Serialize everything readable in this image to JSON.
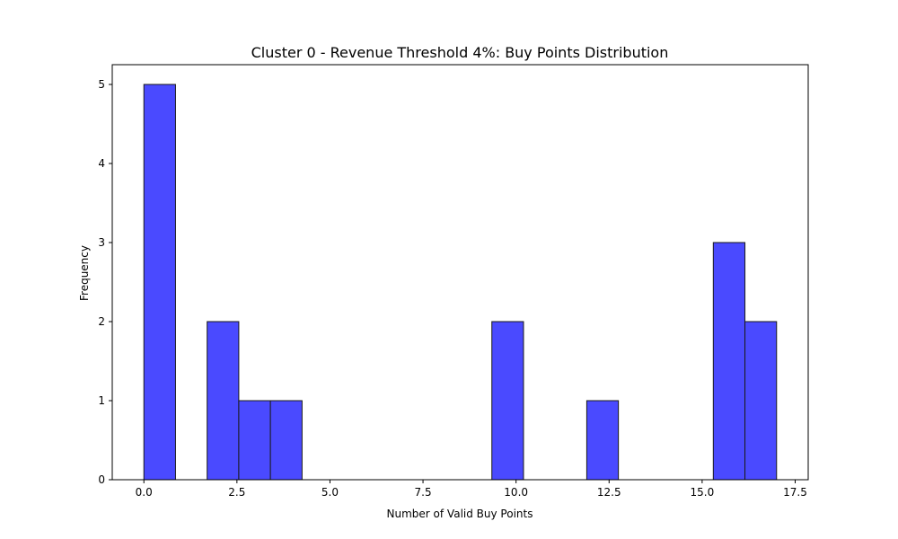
{
  "chart_data": {
    "type": "bar",
    "title": "Cluster 0 - Revenue Threshold 4%: Buy Points Distribution",
    "xlabel": "Number of Valid Buy Points",
    "ylabel": "Frequency",
    "xlim": [
      -0.85,
      17.85
    ],
    "ylim": [
      0,
      5.25
    ],
    "xticks": [
      0.0,
      2.5,
      5.0,
      7.5,
      10.0,
      12.5,
      15.0,
      17.5
    ],
    "xtick_labels": [
      "0.0",
      "2.5",
      "5.0",
      "7.5",
      "10.0",
      "12.5",
      "15.0",
      "17.5"
    ],
    "yticks": [
      0,
      1,
      2,
      3,
      4,
      5
    ],
    "ytick_labels": [
      "0",
      "1",
      "2",
      "3",
      "4",
      "5"
    ],
    "bar_color": "#4a4aff",
    "edge_color": "#1a1a1a",
    "grid": false,
    "bins": [
      {
        "x0": 0.0,
        "x1": 0.85,
        "value": 5
      },
      {
        "x0": 0.85,
        "x1": 1.7,
        "value": 0
      },
      {
        "x0": 1.7,
        "x1": 2.55,
        "value": 2
      },
      {
        "x0": 2.55,
        "x1": 3.4,
        "value": 1
      },
      {
        "x0": 3.4,
        "x1": 4.25,
        "value": 1
      },
      {
        "x0": 4.25,
        "x1": 5.1,
        "value": 0
      },
      {
        "x0": 5.1,
        "x1": 5.95,
        "value": 0
      },
      {
        "x0": 5.95,
        "x1": 6.8,
        "value": 0
      },
      {
        "x0": 6.8,
        "x1": 7.65,
        "value": 0
      },
      {
        "x0": 7.65,
        "x1": 8.5,
        "value": 0
      },
      {
        "x0": 8.5,
        "x1": 9.35,
        "value": 0
      },
      {
        "x0": 9.35,
        "x1": 10.2,
        "value": 2
      },
      {
        "x0": 10.2,
        "x1": 11.05,
        "value": 0
      },
      {
        "x0": 11.05,
        "x1": 11.9,
        "value": 0
      },
      {
        "x0": 11.9,
        "x1": 12.75,
        "value": 1
      },
      {
        "x0": 12.75,
        "x1": 13.6,
        "value": 0
      },
      {
        "x0": 13.6,
        "x1": 14.45,
        "value": 0
      },
      {
        "x0": 14.45,
        "x1": 15.3,
        "value": 0
      },
      {
        "x0": 15.3,
        "x1": 16.15,
        "value": 3
      },
      {
        "x0": 16.15,
        "x1": 17.0,
        "value": 2
      }
    ]
  }
}
